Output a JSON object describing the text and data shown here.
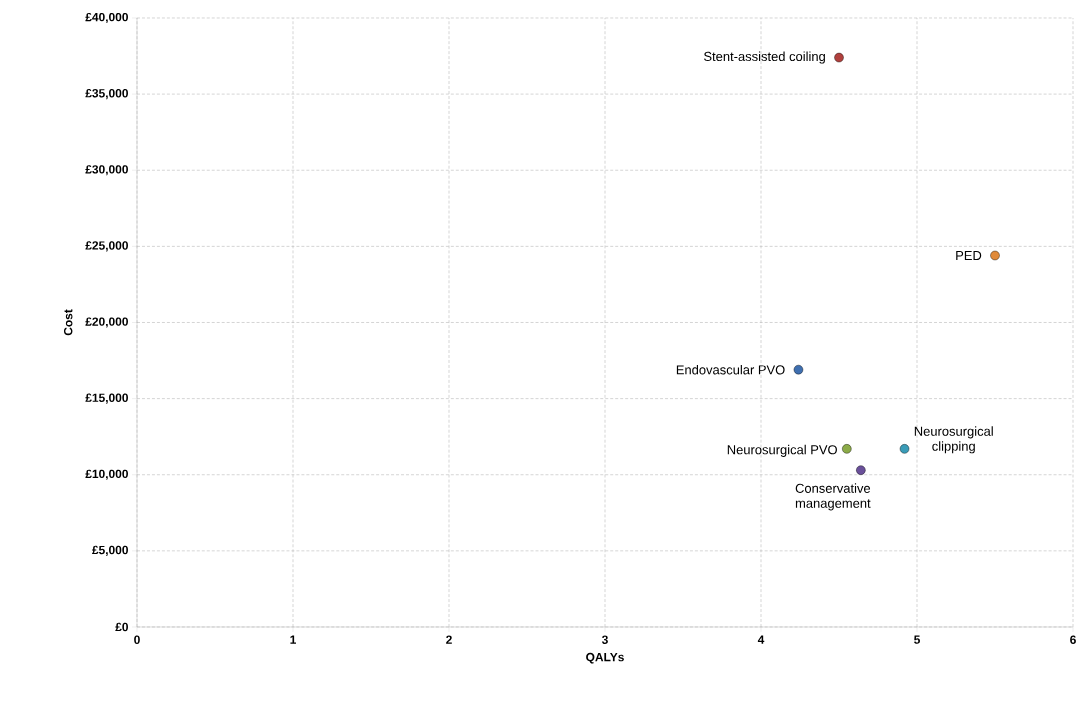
{
  "chart_data": {
    "type": "scatter",
    "xlabel": "QALYs",
    "ylabel": "Cost",
    "xlim": [
      0,
      6
    ],
    "xticks": [
      0,
      1,
      2,
      3,
      4,
      5,
      6
    ],
    "ylim": [
      0,
      40000
    ],
    "yticks": [
      {
        "value": 0,
        "label": "£0"
      },
      {
        "value": 5000,
        "label": "£5,000"
      },
      {
        "value": 10000,
        "label": "£10,000"
      },
      {
        "value": 15000,
        "label": "£15,000"
      },
      {
        "value": 20000,
        "label": "£20,000"
      },
      {
        "value": 25000,
        "label": "£25,000"
      },
      {
        "value": 30000,
        "label": "£30,000"
      },
      {
        "value": 35000,
        "label": "£35,000"
      },
      {
        "value": 40000,
        "label": "£40,000"
      }
    ],
    "grid": true,
    "marker": "circle",
    "series": [
      {
        "name": "Stent-assisted coiling",
        "color": "#b0403d",
        "x": [
          4.5
        ],
        "values": [
          37400
        ]
      },
      {
        "name": "PED",
        "color": "#e08a3a",
        "x": [
          5.5
        ],
        "values": [
          24400
        ]
      },
      {
        "name": "Endovascular PVO",
        "color": "#3f6fb0",
        "x": [
          4.24
        ],
        "values": [
          16900
        ]
      },
      {
        "name": "Neurosurgical PVO",
        "color": "#8cab48",
        "x": [
          4.55
        ],
        "values": [
          11700
        ]
      },
      {
        "name": "Conservative management",
        "color": "#6a509a",
        "x": [
          4.64
        ],
        "values": [
          10300
        ]
      },
      {
        "name": "Neurosurgical clipping",
        "color": "#3a9cb8",
        "x": [
          4.92
        ],
        "values": [
          11700
        ]
      }
    ]
  }
}
